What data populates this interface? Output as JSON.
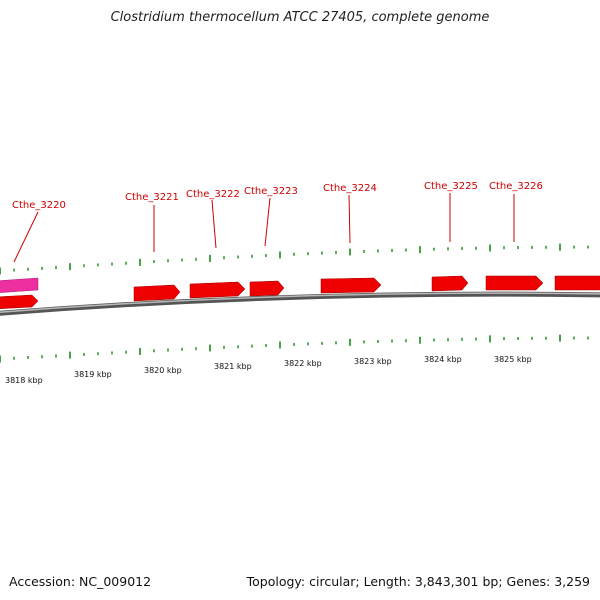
{
  "title": "Clostridium thermocellum ATCC 27405, complete genome",
  "footer": {
    "accession": "Accession: NC_009012",
    "summary": "Topology: circular; Length: 3,843,301 bp; Genes: 3,259"
  },
  "colors": {
    "gene_forward": "#ee0000",
    "gene_other": "#ee2fa0",
    "tick": "#1a8a1a",
    "backbone": "#808080",
    "label": "#cc0000"
  },
  "coordinate_labels": [
    "3818 kbp",
    "3819 kbp",
    "3820 kbp",
    "3821 kbp",
    "3822 kbp",
    "3823 kbp",
    "3824 kbp",
    "3825 kbp"
  ],
  "gene_labels": [
    "Cthe_3220",
    "Cthe_3221",
    "Cthe_3222",
    "Cthe_3223",
    "Cthe_3224",
    "Cthe_3225",
    "Cthe_3226"
  ]
}
